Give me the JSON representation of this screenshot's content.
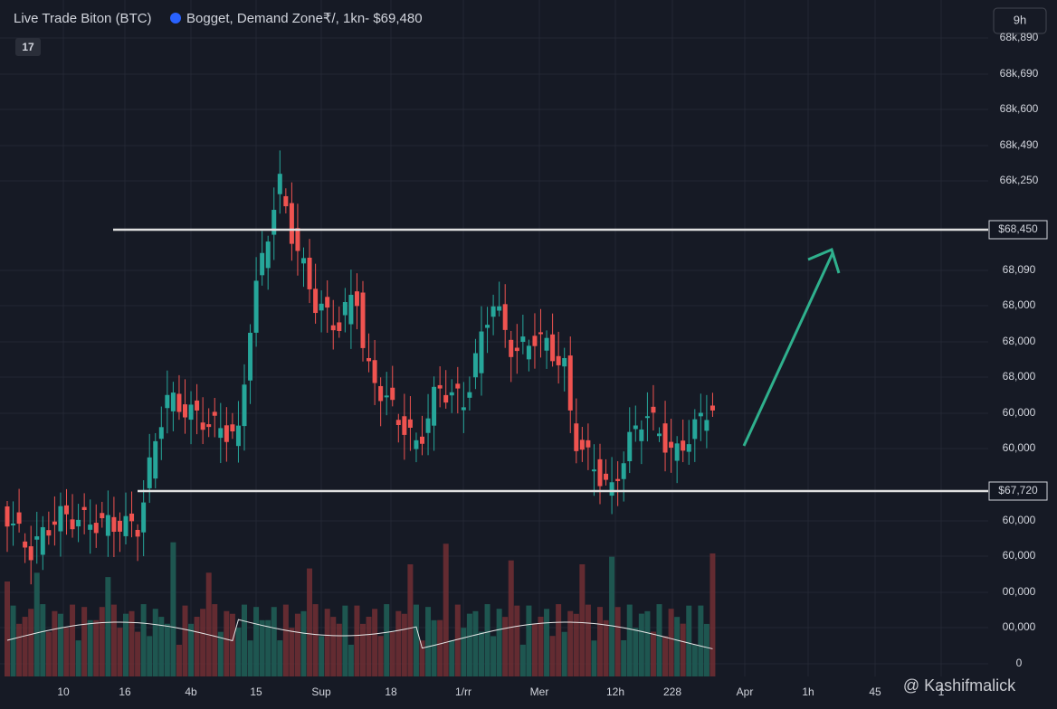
{
  "header": {
    "title": "Live Trade Biton (BTC)",
    "subtitle": "Bogget, Demand Zone₹/, 1kn- $69,480",
    "timeframe_button": "9h"
  },
  "price_scale": [
    "68k,890",
    "68k,690",
    "68k,600",
    "68k,490",
    "66k,250",
    "68,090",
    "68,000",
    "68,000",
    "68,000",
    "60,000",
    "60,000",
    "60,000",
    "60,000",
    "00,000",
    "00,000",
    "0"
  ],
  "levels": [
    "$68,450",
    "$67,720"
  ],
  "time_scale": [
    "10",
    "16",
    "4b",
    "15",
    "Sup",
    "18",
    "1/rr",
    "Mer",
    "12h",
    "228",
    "Apr",
    "1h",
    "45",
    "1"
  ],
  "watermark": "@ Kashifmalick"
}
